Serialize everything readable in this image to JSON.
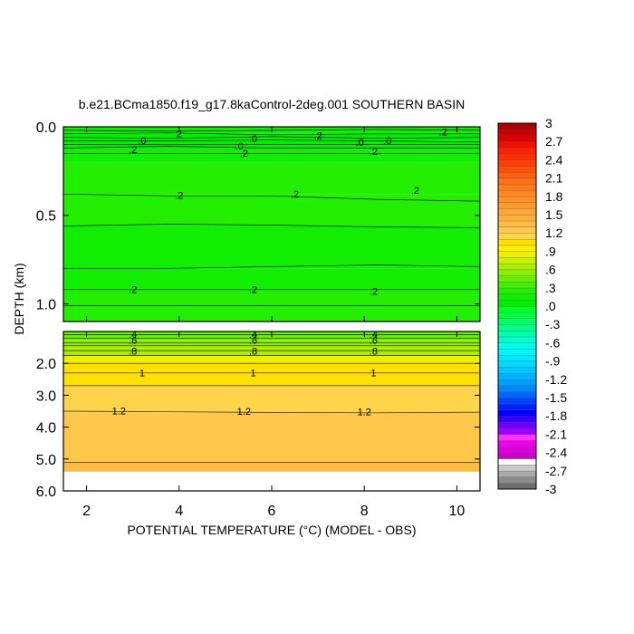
{
  "chart_data": {
    "type": "heatmap",
    "title": "b.e21.BCma1850.f19_g17.8kaControl-2deg.001 SOUTHERN BASIN",
    "xlabel": "POTENTIAL TEMPERATURE (°C) (MODEL - OBS)",
    "ylabel": "DEPTH (km)",
    "xlim": [
      1.5,
      10.5
    ],
    "x_ticks": [
      2,
      4,
      6,
      8,
      10
    ],
    "x_tick_labels": [
      "2",
      "4",
      "6",
      "8",
      "10"
    ],
    "panels": [
      {
        "name": "upper",
        "ylim": [
          0.0,
          1.1
        ],
        "y_ticks": [
          0.0,
          0.5,
          1.0
        ],
        "y_tick_labels": [
          "0.0",
          "0.5",
          "1.0"
        ],
        "bands": [
          {
            "y0": 0.0,
            "y1": 0.04,
            "value": 0.15
          },
          {
            "y0": 0.04,
            "y1": 0.08,
            "value": 0.05
          },
          {
            "y0": 0.08,
            "y1": 0.12,
            "value": 0.0
          },
          {
            "y0": 0.12,
            "y1": 0.2,
            "value": 0.12
          },
          {
            "y0": 0.2,
            "y1": 0.38,
            "value": 0.25
          },
          {
            "y0": 0.38,
            "y1": 0.56,
            "value": 0.2
          },
          {
            "y0": 0.56,
            "y1": 0.8,
            "value": 0.12
          },
          {
            "y0": 0.8,
            "y1": 0.92,
            "value": 0.15
          },
          {
            "y0": 0.92,
            "y1": 1.0,
            "value": 0.2
          },
          {
            "y0": 1.0,
            "y1": 1.1,
            "value": 0.25
          }
        ],
        "contours": [
          {
            "y": 0.02,
            "dy": [
              0.0,
              0.005,
              0.0,
              -0.005,
              0.0
            ]
          },
          {
            "y": 0.04,
            "dy": [
              0.0,
              -0.005,
              0.005,
              0.0,
              0.0
            ]
          },
          {
            "y": 0.06,
            "dy": [
              0.0,
              0.005,
              -0.005,
              0.005,
              0.0
            ]
          },
          {
            "y": 0.08,
            "dy": [
              0.0,
              0.0,
              -0.005,
              0.0,
              0.005
            ]
          },
          {
            "y": 0.1,
            "dy": [
              0.0,
              0.0,
              0.0,
              0.0,
              0.0
            ]
          },
          {
            "y": 0.12,
            "dy": [
              0.0,
              -0.01,
              0.0,
              0.0,
              0.0
            ]
          },
          {
            "y": 0.15,
            "dy": [
              0.0,
              0.0,
              0.0,
              0.0,
              0.0
            ]
          },
          {
            "y": 0.38,
            "dy": [
              0.0,
              0.01,
              0.01,
              0.03,
              0.04
            ]
          },
          {
            "y": 0.56,
            "dy": [
              0.0,
              -0.01,
              -0.005,
              0.005,
              0.01
            ]
          },
          {
            "y": 0.8,
            "dy": [
              0.0,
              0.0,
              -0.01,
              -0.02,
              -0.01
            ]
          },
          {
            "y": 0.92,
            "dy": [
              0.0,
              0.0,
              0.0,
              0.0,
              0.0
            ]
          },
          {
            "y": 1.01,
            "dy": [
              0.0,
              0.0,
              0.0,
              0.0,
              0.0
            ]
          }
        ],
        "contour_labels": [
          {
            "x": 4.0,
            "y": 0.04,
            "text": "2"
          },
          {
            "x": 3.2,
            "y": 0.08,
            "text": ".0"
          },
          {
            "x": 3.0,
            "y": 0.13,
            "text": ".2"
          },
          {
            "x": 5.3,
            "y": 0.11,
            "text": ".0"
          },
          {
            "x": 5.4,
            "y": 0.15,
            "text": ".2"
          },
          {
            "x": 5.6,
            "y": 0.07,
            "text": ".0"
          },
          {
            "x": 7.0,
            "y": 0.05,
            "text": ".2"
          },
          {
            "x": 7.9,
            "y": 0.09,
            "text": ".0"
          },
          {
            "x": 8.2,
            "y": 0.14,
            "text": ".2"
          },
          {
            "x": 8.5,
            "y": 0.08,
            "text": ".0"
          },
          {
            "x": 9.7,
            "y": 0.03,
            "text": ".2"
          },
          {
            "x": 4.0,
            "y": 0.39,
            "text": ".2"
          },
          {
            "x": 6.5,
            "y": 0.38,
            "text": ".2"
          },
          {
            "x": 9.1,
            "y": 0.36,
            "text": ".2"
          },
          {
            "x": 3.0,
            "y": 0.92,
            "text": ".2"
          },
          {
            "x": 5.6,
            "y": 0.92,
            "text": ".2"
          },
          {
            "x": 8.2,
            "y": 0.93,
            "text": ".2"
          }
        ]
      },
      {
        "name": "lower",
        "ylim": [
          1.0,
          6.0
        ],
        "valid_max_depth": 5.4,
        "y_ticks": [
          2.0,
          3.0,
          4.0,
          5.0,
          6.0
        ],
        "y_tick_labels": [
          "2.0",
          "3.0",
          "4.0",
          "5.0",
          "6.0"
        ],
        "bands": [
          {
            "y0": 1.0,
            "y1": 1.22,
            "value": 0.4
          },
          {
            "y0": 1.22,
            "y1": 1.45,
            "value": 0.5
          },
          {
            "y0": 1.45,
            "y1": 1.75,
            "value": 0.65
          },
          {
            "y0": 1.75,
            "y1": 2.0,
            "value": 0.85
          },
          {
            "y0": 2.0,
            "y1": 2.7,
            "value": 1.05
          },
          {
            "y0": 2.7,
            "y1": 3.55,
            "value": 1.15
          },
          {
            "y0": 3.55,
            "y1": 5.1,
            "value": 1.25
          },
          {
            "y0": 5.1,
            "y1": 5.4,
            "value": 1.3
          }
        ],
        "contours": [
          {
            "y": 1.1,
            "dy": [
              0.0,
              0.0,
              0.0,
              0.0,
              0.0
            ]
          },
          {
            "y": 1.22,
            "dy": [
              0.0,
              0.0,
              0.0,
              0.0,
              0.0
            ]
          },
          {
            "y": 1.35,
            "dy": [
              0.0,
              0.0,
              0.0,
              0.0,
              0.0
            ]
          },
          {
            "y": 1.45,
            "dy": [
              0.0,
              0.0,
              0.0,
              0.0,
              0.0
            ]
          },
          {
            "y": 1.6,
            "dy": [
              0.0,
              0.0,
              0.0,
              0.0,
              0.0
            ]
          },
          {
            "y": 1.75,
            "dy": [
              0.0,
              0.0,
              0.0,
              0.0,
              0.0
            ]
          },
          {
            "y": 2.0,
            "dy": [
              0.0,
              0.0,
              0.0,
              0.0,
              0.0
            ]
          },
          {
            "y": 2.3,
            "dy": [
              0.0,
              0.0,
              0.0,
              0.0,
              0.0
            ]
          },
          {
            "y": 2.7,
            "dy": [
              0.0,
              0.0,
              0.0,
              0.0,
              0.0
            ]
          },
          {
            "y": 3.5,
            "dy": [
              0.0,
              0.02,
              0.04,
              0.05,
              0.03
            ]
          },
          {
            "y": 5.1,
            "dy": [
              0.0,
              0.0,
              0.0,
              0.0,
              0.0
            ]
          }
        ],
        "contour_labels": [
          {
            "x": 3.0,
            "y": 1.1,
            "text": ".4"
          },
          {
            "x": 5.6,
            "y": 1.1,
            "text": ".4"
          },
          {
            "x": 8.2,
            "y": 1.1,
            "text": ".4"
          },
          {
            "x": 3.0,
            "y": 1.28,
            "text": ".6"
          },
          {
            "x": 5.6,
            "y": 1.28,
            "text": ".6"
          },
          {
            "x": 8.2,
            "y": 1.28,
            "text": ".6"
          },
          {
            "x": 3.0,
            "y": 1.62,
            "text": ".8"
          },
          {
            "x": 5.6,
            "y": 1.62,
            "text": ".8"
          },
          {
            "x": 8.2,
            "y": 1.62,
            "text": ".8"
          },
          {
            "x": 3.2,
            "y": 2.3,
            "text": "1"
          },
          {
            "x": 5.6,
            "y": 2.3,
            "text": "1"
          },
          {
            "x": 8.2,
            "y": 2.3,
            "text": "1"
          },
          {
            "x": 2.7,
            "y": 3.5,
            "text": "1.2"
          },
          {
            "x": 5.4,
            "y": 3.52,
            "text": "1.2"
          },
          {
            "x": 8.0,
            "y": 3.53,
            "text": "1.2"
          }
        ]
      }
    ],
    "colorbar": {
      "levels": [
        -3,
        -2.9,
        -2.8,
        -2.7,
        -2.6,
        -2.5,
        -2.4,
        -2.3,
        -2.2,
        -2.1,
        -2.0,
        -1.9,
        -1.8,
        -1.7,
        -1.6,
        -1.5,
        -1.4,
        -1.3,
        -1.2,
        -1.1,
        -1.0,
        -0.9,
        -0.8,
        -0.7,
        -0.6,
        -0.5,
        -0.4,
        -0.3,
        -0.2,
        -0.1,
        0.0,
        0.1,
        0.2,
        0.3,
        0.4,
        0.5,
        0.6,
        0.7,
        0.8,
        0.9,
        1.0,
        1.1,
        1.2,
        1.3,
        1.4,
        1.5,
        1.6,
        1.7,
        1.8,
        1.9,
        2.0,
        2.1,
        2.2,
        2.3,
        2.4,
        2.5,
        2.6,
        2.7,
        2.8,
        2.9,
        3.0
      ],
      "tick_labels": [
        "3",
        "2.7",
        "2.4",
        "2.1",
        "1.8",
        "1.5",
        "1.2",
        ".9",
        ".6",
        ".3",
        ".0",
        "-.3",
        "-.6",
        "-.9",
        "-1.2",
        "-1.5",
        "-1.8",
        "-2.1",
        "-2.4",
        "-2.7",
        "-3"
      ],
      "colors": [
        "#6e6e6e",
        "#8c8c8c",
        "#aaaaaa",
        "#c8c8c8",
        "#ffffff",
        "#cc00cc",
        "#dd00dd",
        "#ee00ee",
        "#ff33ff",
        "#9a00ff",
        "#6a00ff",
        "#3a00ff",
        "#0000ff",
        "#0022ff",
        "#0044ff",
        "#0066ff",
        "#0088ff",
        "#00a0ff",
        "#00b4ff",
        "#00c8ff",
        "#00dcff",
        "#00eaff",
        "#00f6ff",
        "#00ffe6",
        "#00ffcc",
        "#00ffaa",
        "#00ff88",
        "#00ff66",
        "#00ff44",
        "#00ff22",
        "#00ee00",
        "#11ee00",
        "#22ee00",
        "#44ee00",
        "#66f000",
        "#88f000",
        "#aaf000",
        "#ccf000",
        "#eef000",
        "#ffee00",
        "#ffe000",
        "#ffd44a",
        "#ffc84a",
        "#ffbc44",
        "#ffb03c",
        "#ffa636",
        "#ff9c30",
        "#ff9228",
        "#ff8822",
        "#ff7c1c",
        "#ff7016",
        "#ff6010",
        "#ff500a",
        "#ff4006",
        "#ff3002",
        "#ff2000",
        "#ee1000",
        "#dd0000",
        "#cc0000",
        "#aa0000"
      ]
    }
  }
}
